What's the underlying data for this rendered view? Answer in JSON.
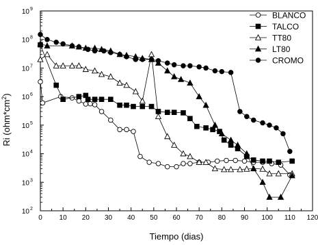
{
  "chart_data": {
    "type": "line",
    "title": "",
    "xlabel": "Tiempo (dias)",
    "ylabel": "Ri (ohm*cm²)",
    "ylabel_parts": {
      "main": "Ri (ohm*cm",
      "sup": "2",
      "close": ")"
    },
    "xlim": [
      0,
      120
    ],
    "ylim": [
      100,
      1000000000
    ],
    "yscale": "log",
    "x_ticks": [
      0,
      10,
      20,
      30,
      40,
      50,
      60,
      70,
      80,
      90,
      100,
      110,
      120
    ],
    "x_tick_labels": [
      "0",
      "10",
      "20",
      "30",
      "40",
      "50",
      "60",
      "70",
      "80",
      "90",
      "100",
      "110",
      "120"
    ],
    "y_ticks": [
      {
        "base": "10",
        "exp": "2",
        "value": 100
      },
      {
        "base": "10",
        "exp": "3",
        "value": 1000
      },
      {
        "base": "10",
        "exp": "4",
        "value": 10000
      },
      {
        "base": "10",
        "exp": "5",
        "value": 100000
      },
      {
        "base": "10",
        "exp": "6",
        "value": 1000000
      },
      {
        "base": "10",
        "exp": "7",
        "value": 10000000
      },
      {
        "base": "10",
        "exp": "8",
        "value": 100000000
      },
      {
        "base": "10",
        "exp": "9",
        "value": 1000000000
      }
    ],
    "grid": false,
    "legend_position": "top-right",
    "series": [
      {
        "name": "BLANCO",
        "marker": "circle-open",
        "x": [
          0,
          1,
          9,
          14,
          17,
          20,
          22,
          24,
          27,
          31,
          35,
          38,
          41,
          44,
          48,
          52,
          56,
          60,
          63,
          66,
          70,
          74,
          78,
          82,
          86,
          90,
          94,
          98,
          102,
          106,
          110
        ],
        "values": [
          3300000,
          600000,
          1000000,
          900000,
          700000,
          550000,
          560000,
          520000,
          300000,
          150000,
          70000,
          70000,
          60000,
          8000,
          5000,
          4500,
          3500,
          3500,
          4500,
          4500,
          5000,
          5000,
          5500,
          5800,
          5800,
          5500,
          5000,
          5000,
          4500,
          4000,
          1800
        ]
      },
      {
        "name": "TALCO",
        "marker": "square-filled",
        "x": [
          0,
          7,
          10,
          17,
          20,
          21,
          24,
          27,
          31,
          35,
          38,
          41,
          45,
          49,
          52,
          56,
          59,
          63,
          66,
          69,
          73,
          76,
          79,
          81,
          84,
          87,
          91,
          94,
          98,
          101,
          105,
          111
        ],
        "values": [
          65000000,
          2500000,
          800000,
          1000000,
          1100000,
          800000,
          800000,
          800000,
          800000,
          500000,
          500000,
          450000,
          450000,
          450000,
          300000,
          280000,
          280000,
          270000,
          170000,
          90000,
          80000,
          70000,
          60000,
          30000,
          20000,
          15000,
          8000,
          6000,
          5500,
          5500,
          5000,
          5500
        ]
      },
      {
        "name": "TT80",
        "marker": "triangle-open",
        "x": [
          0,
          3,
          7,
          10,
          14,
          17,
          20,
          24,
          27,
          31,
          35,
          38,
          42,
          45,
          49,
          52,
          56,
          59,
          63,
          66,
          70,
          73,
          77,
          81,
          84,
          88,
          91,
          94,
          98,
          101,
          105,
          111
        ],
        "values": [
          20000000,
          30000000,
          12000000,
          12000000,
          12000000,
          12000000,
          9000000,
          8000000,
          6000000,
          5000000,
          3000000,
          2500000,
          1500000,
          700000,
          30000000,
          200000,
          40000,
          20000,
          10000,
          8000,
          5000,
          5000,
          3000,
          2800,
          2800,
          2800,
          2900,
          3000,
          2900,
          2000,
          2000,
          2000
        ]
      },
      {
        "name": "LT80",
        "marker": "triangle-filled",
        "x": [
          0,
          3,
          14,
          17,
          20,
          24,
          27,
          31,
          35,
          38,
          42,
          45,
          49,
          52,
          56,
          59,
          62,
          66,
          70,
          73,
          77,
          80,
          84,
          87,
          91,
          94,
          98,
          101,
          106,
          111
        ],
        "values": [
          70000000,
          60000000,
          60000000,
          55000000,
          50000000,
          50000000,
          45000000,
          40000000,
          30000000,
          28000000,
          25000000,
          22000000,
          20000000,
          15000000,
          8000000,
          5000000,
          4000000,
          3000000,
          1000000,
          500000,
          100000,
          50000,
          30000,
          20000,
          10000,
          3000,
          1000,
          300,
          300,
          1700
        ]
      },
      {
        "name": "CROMO",
        "marker": "circle-filled",
        "x": [
          0,
          3,
          7,
          10,
          14,
          17,
          21,
          24,
          28,
          31,
          35,
          38,
          42,
          45,
          49,
          52,
          56,
          59,
          63,
          66,
          70,
          73,
          77,
          80,
          84,
          88,
          91,
          94,
          98,
          101,
          104,
          107,
          110
        ],
        "values": [
          150000000,
          100000000,
          80000000,
          70000000,
          60000000,
          55000000,
          45000000,
          40000000,
          40000000,
          35000000,
          30000000,
          25000000,
          20000000,
          20000000,
          20000000,
          18000000,
          15000000,
          13000000,
          12000000,
          12000000,
          11000000,
          10000000,
          8000000,
          7500000,
          7000000,
          300000,
          200000,
          150000,
          120000,
          100000,
          80000,
          50000,
          12000
        ]
      }
    ]
  }
}
